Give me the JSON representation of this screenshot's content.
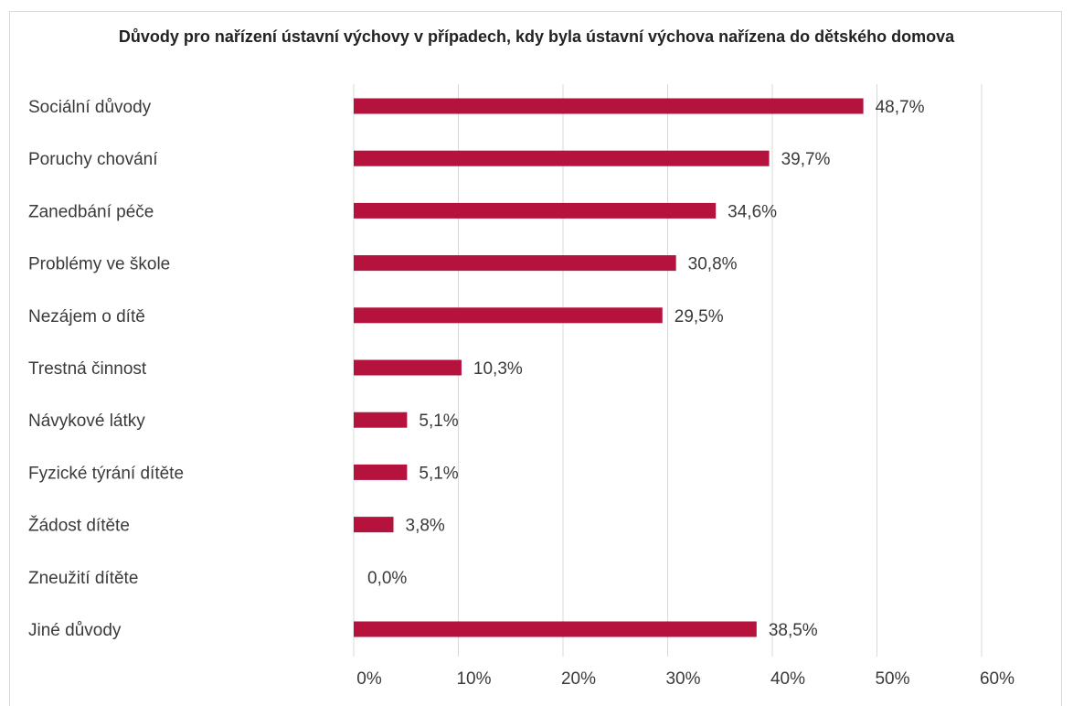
{
  "chart_data": {
    "type": "bar",
    "orientation": "horizontal",
    "title": "Důvody pro nařízení ústavní výchovy v případech, kdy byla ústavní výchova nařízena do dětského domova",
    "categories": [
      "Sociální důvody",
      "Poruchy chování",
      "Zanedbání péče",
      "Problémy ve škole",
      "Nezájem o dítě",
      "Trestná činnost",
      "Návykové látky",
      "Fyzické týrání dítěte",
      "Žádost dítěte",
      "Zneužití dítěte",
      "Jiné důvody"
    ],
    "values": [
      48.7,
      39.7,
      34.6,
      30.8,
      29.5,
      10.3,
      5.1,
      5.1,
      3.8,
      0.0,
      38.5
    ],
    "value_labels": [
      "48,7%",
      "39,7%",
      "34,6%",
      "30,8%",
      "29,5%",
      "10,3%",
      "5,1%",
      "5,1%",
      "3,8%",
      "0,0%",
      "38,5%"
    ],
    "xlim": [
      0,
      60
    ],
    "x_ticks": [
      0,
      10,
      20,
      30,
      40,
      50,
      60
    ],
    "x_tick_labels": [
      "0%",
      "10%",
      "20%",
      "30%",
      "40%",
      "50%",
      "60%"
    ],
    "grid": true,
    "legend": "none",
    "bar_color": "#b5123e",
    "grid_color": "#d9d9d9"
  }
}
